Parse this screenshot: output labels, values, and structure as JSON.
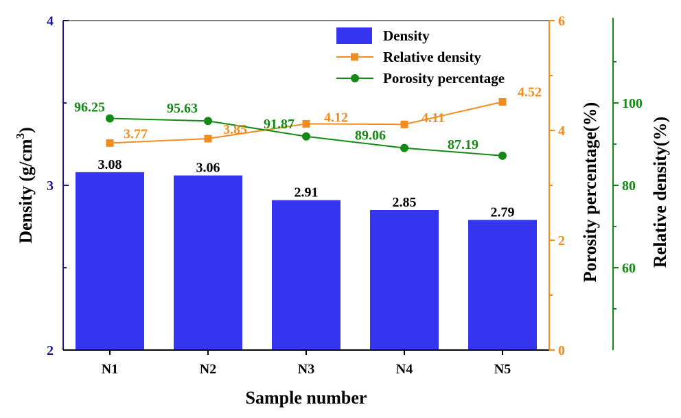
{
  "chart_data": {
    "type": "bar",
    "categories": [
      "N1",
      "N2",
      "N3",
      "N4",
      "N5"
    ],
    "xlabel": "Sample number",
    "legend_position": "top-right",
    "axes": {
      "left": {
        "label": "Density (g/cm",
        "label_superscript": "3",
        "label_suffix": ")",
        "range": [
          2,
          4
        ],
        "ticks": [
          "2",
          "3",
          "4"
        ],
        "color": "#1a1a8c"
      },
      "right_inner": {
        "label": "Porosity percentage(%)",
        "range": [
          0,
          6
        ],
        "ticks": [
          "0",
          "2",
          "4",
          "6"
        ],
        "color": "#f28c1e"
      },
      "right_outer": {
        "label": "Relative density(%)",
        "range": [
          40,
          120
        ],
        "ticks": [
          "60",
          "80",
          "100"
        ],
        "color": "#138a13"
      }
    },
    "series": [
      {
        "name": "Density",
        "kind": "bar",
        "axis": "left",
        "color": "#3535f0",
        "values": [
          3.08,
          3.06,
          2.91,
          2.85,
          2.79
        ],
        "labels": [
          "3.08",
          "3.06",
          "2.91",
          "2.85",
          "2.79"
        ]
      },
      {
        "name": "Relative density",
        "kind": "line",
        "marker": "square",
        "axis": "right_inner",
        "color": "#f28c1e",
        "values": [
          3.77,
          3.85,
          4.12,
          4.11,
          4.52
        ],
        "labels": [
          "3.77",
          "3.85",
          "4.12",
          "4.11",
          "4.52"
        ]
      },
      {
        "name": "Porosity percentage",
        "kind": "line",
        "marker": "circle",
        "axis": "right_outer",
        "color": "#138a13",
        "values": [
          96.25,
          95.63,
          91.87,
          89.06,
          87.19
        ],
        "labels": [
          "96.25",
          "95.63",
          "91.87",
          "89.06",
          "87.19"
        ]
      }
    ]
  }
}
